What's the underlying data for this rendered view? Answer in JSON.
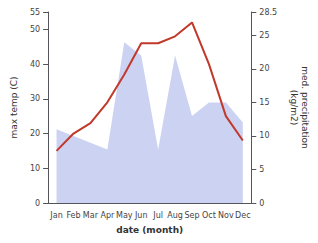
{
  "chart_data": {
    "type": "line",
    "xlabel": "date (month)",
    "ylabel": "max temp (C)",
    "y2label": "med. precipitation\n(kg/m2)",
    "categories": [
      "Jan",
      "Feb",
      "Mar",
      "Apr",
      "May",
      "Jun",
      "Jul",
      "Aug",
      "Sep",
      "Oct",
      "Nov",
      "Dec"
    ],
    "series": [
      {
        "name": "med. precipitation\n(kg/m2)",
        "type": "area",
        "axis": "y2",
        "color": "#aab4e8",
        "values": [
          11,
          10,
          9,
          8,
          24,
          22,
          8,
          22,
          13,
          15,
          15,
          12
        ]
      },
      {
        "name": "max temp (C)",
        "type": "line",
        "axis": "y",
        "color": "#c0392b",
        "marker": "none",
        "values": [
          15,
          20,
          23,
          29,
          37,
          46,
          46,
          48,
          52,
          40,
          25,
          18
        ]
      }
    ],
    "ylim": [
      0,
      55
    ],
    "yticks": [
      0,
      10,
      20,
      30,
      40,
      50
    ],
    "y2lim": [
      0,
      28.5
    ],
    "y2ticks": [
      0,
      5,
      10,
      15,
      20,
      25
    ],
    "grid": false,
    "legend": "none"
  }
}
